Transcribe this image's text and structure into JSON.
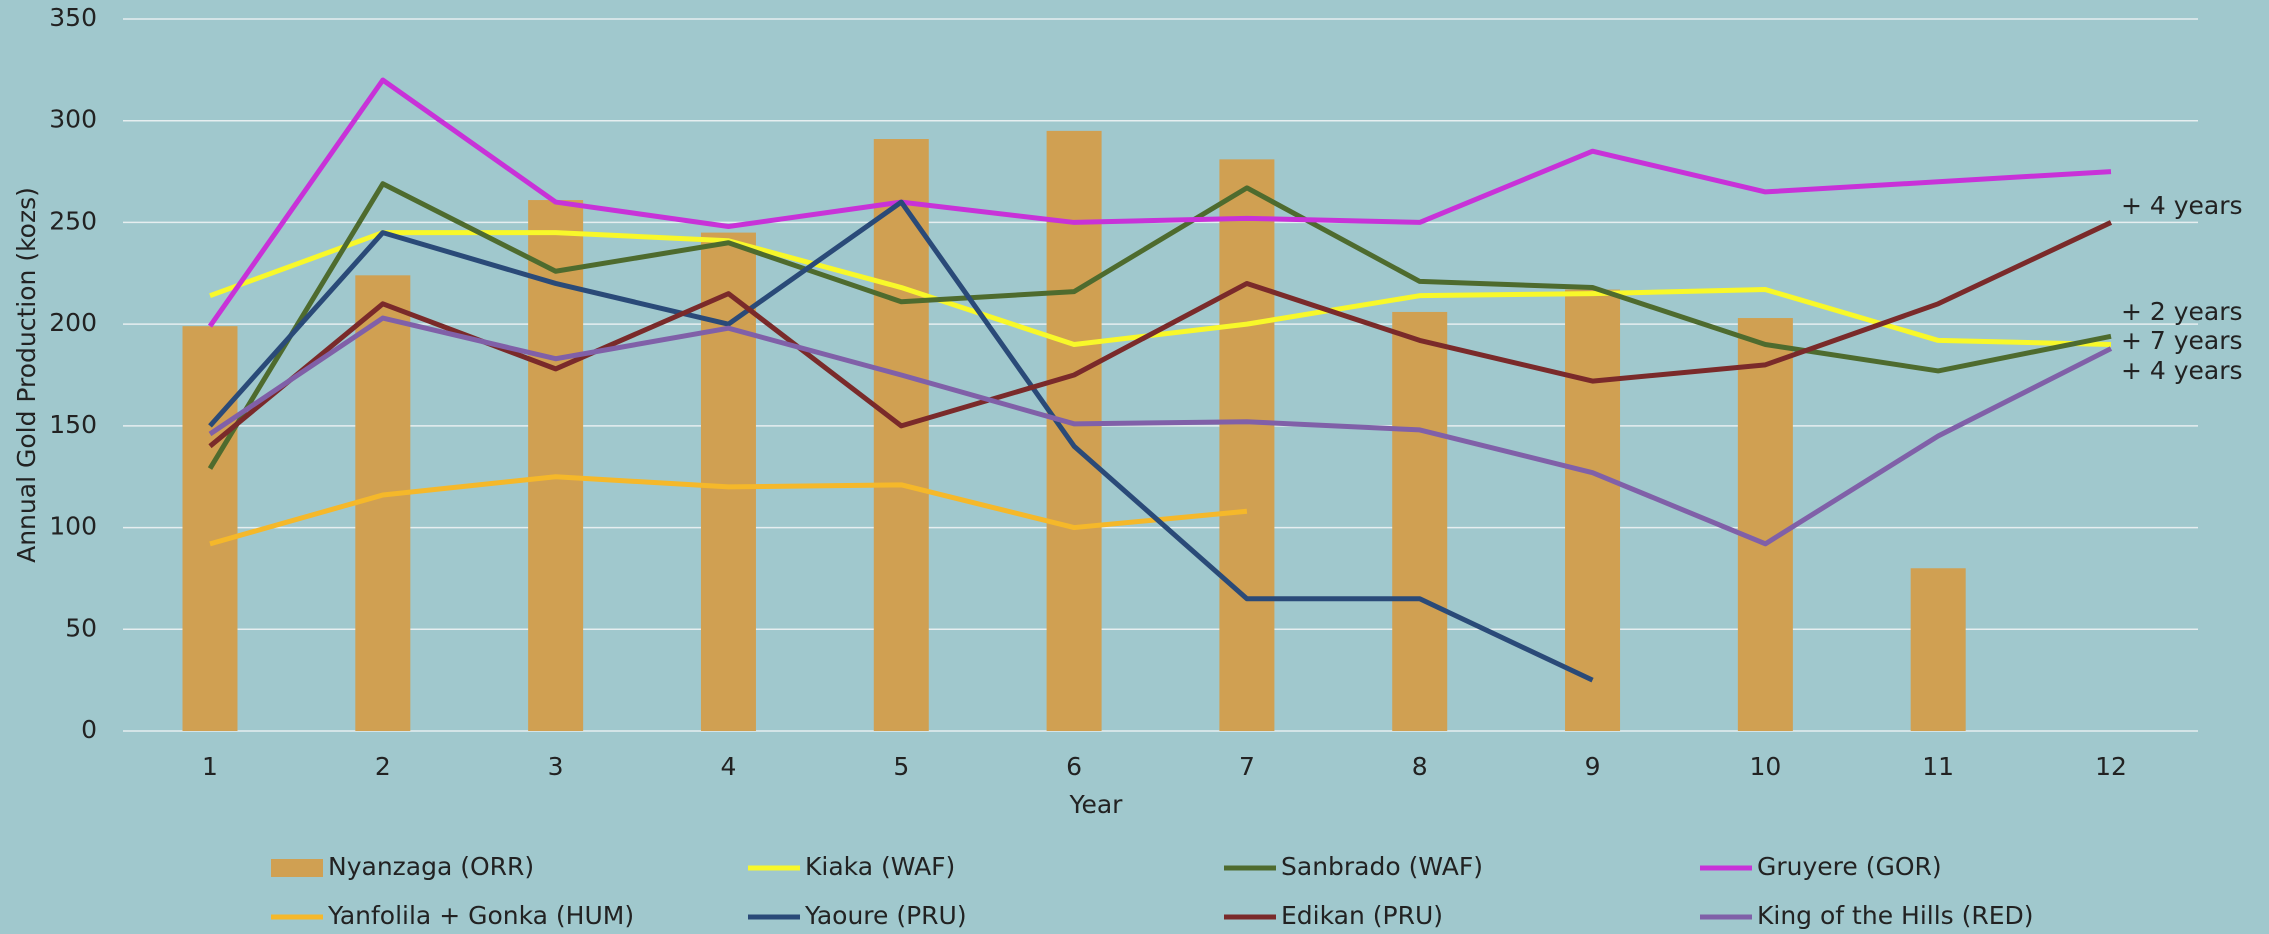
{
  "chart_data": {
    "type": "combo",
    "xlabel": "Year",
    "ylabel": "Annual Gold Production (kozs)",
    "categories": [
      "1",
      "2",
      "3",
      "4",
      "5",
      "6",
      "7",
      "8",
      "9",
      "10",
      "11",
      "12"
    ],
    "ylim": [
      0,
      350
    ],
    "yticks": [
      0,
      50,
      100,
      150,
      200,
      250,
      300,
      350
    ],
    "grid": true,
    "series": [
      {
        "name": "Nyanzaga (ORR)",
        "type": "bar",
        "color": "#d0a052",
        "values": [
          199,
          224,
          261,
          245,
          291,
          295,
          281,
          206,
          217,
          203,
          80,
          null
        ]
      },
      {
        "name": "Kiaka (WAF)",
        "type": "line",
        "color": "#f8f82a",
        "values": [
          214,
          245,
          245,
          241,
          218,
          190,
          200,
          214,
          215,
          217,
          192,
          190
        ]
      },
      {
        "name": "Sanbrado (WAF)",
        "type": "line",
        "color": "#4e6b2e",
        "values": [
          129,
          269,
          226,
          240,
          211,
          216,
          267,
          221,
          218,
          190,
          177,
          194
        ]
      },
      {
        "name": "Gruyere (GOR)",
        "type": "line",
        "color": "#c832d8",
        "values": [
          199,
          320,
          260,
          248,
          260,
          250,
          252,
          250,
          285,
          265,
          270,
          275
        ]
      },
      {
        "name": "Yanfolila + Gonka (HUM)",
        "type": "line",
        "color": "#f5b82a",
        "values": [
          92,
          116,
          125,
          120,
          121,
          100,
          108,
          null,
          null,
          null,
          null,
          null
        ]
      },
      {
        "name": "Yaoure (PRU)",
        "type": "line",
        "color": "#2a4a78",
        "values": [
          150,
          245,
          220,
          200,
          260,
          140,
          65,
          65,
          25,
          null,
          null,
          null
        ]
      },
      {
        "name": "Edikan (PRU)",
        "type": "line",
        "color": "#7a2a2a",
        "values": [
          140,
          210,
          178,
          215,
          150,
          175,
          220,
          192,
          172,
          180,
          210,
          250
        ]
      },
      {
        "name": "King of the Hills (RED)",
        "type": "line",
        "color": "#8060a8",
        "values": [
          146,
          203,
          183,
          198,
          175,
          151,
          152,
          148,
          127,
          92,
          145,
          188
        ]
      }
    ],
    "annotations": [
      {
        "text": "+ 4 years",
        "color": "#8b3a2a"
      },
      {
        "text": "+ 2 years",
        "color": "#5a7a2a"
      },
      {
        "text": "+ 7 years",
        "color": "#ffff30"
      },
      {
        "text": "+ 4 years",
        "color": "#6a5a9a"
      }
    ]
  }
}
